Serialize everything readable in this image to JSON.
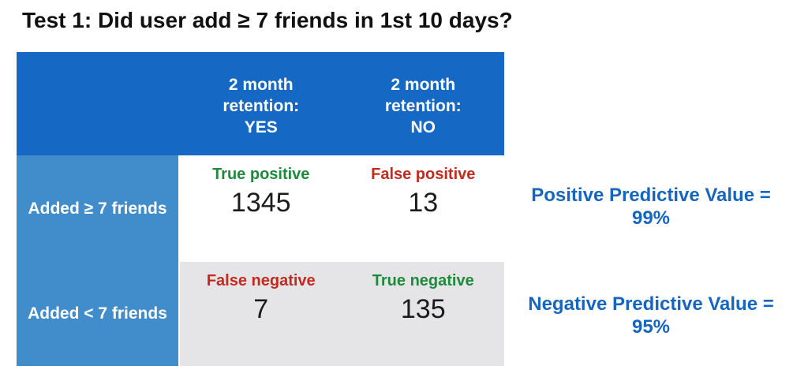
{
  "title": "Test 1: Did user add ≥ 7 friends in 1st 10 days?",
  "colors": {
    "header_blue": "#1568C4",
    "row_label_blue": "#418DCB",
    "cell_gray": "#E5E5E8",
    "annotation_blue": "#1566C1",
    "true_green": "#1E8A3C",
    "false_red": "#C5291D",
    "number_black": "#1C1C1C"
  },
  "matrix": {
    "col_headers": [
      "2 month\nretention:\nYES",
      "2 month\nretention:\nNO"
    ],
    "rows": [
      {
        "label": "Added ≥ 7 friends",
        "cells": [
          {
            "tag": "True positive",
            "tone": "good",
            "value": "1345"
          },
          {
            "tag": "False positive",
            "tone": "bad",
            "value": "13"
          }
        ]
      },
      {
        "label": "Added < 7 friends",
        "cells": [
          {
            "tag": "False negative",
            "tone": "bad",
            "value": "7"
          },
          {
            "tag": "True negative",
            "tone": "good",
            "value": "135"
          }
        ]
      }
    ]
  },
  "annotations": [
    {
      "label_line": "Positive Predictive Value =",
      "value_line": "99%"
    },
    {
      "label_line": "Negative Predictive Value =",
      "value_line": "95%"
    }
  ]
}
